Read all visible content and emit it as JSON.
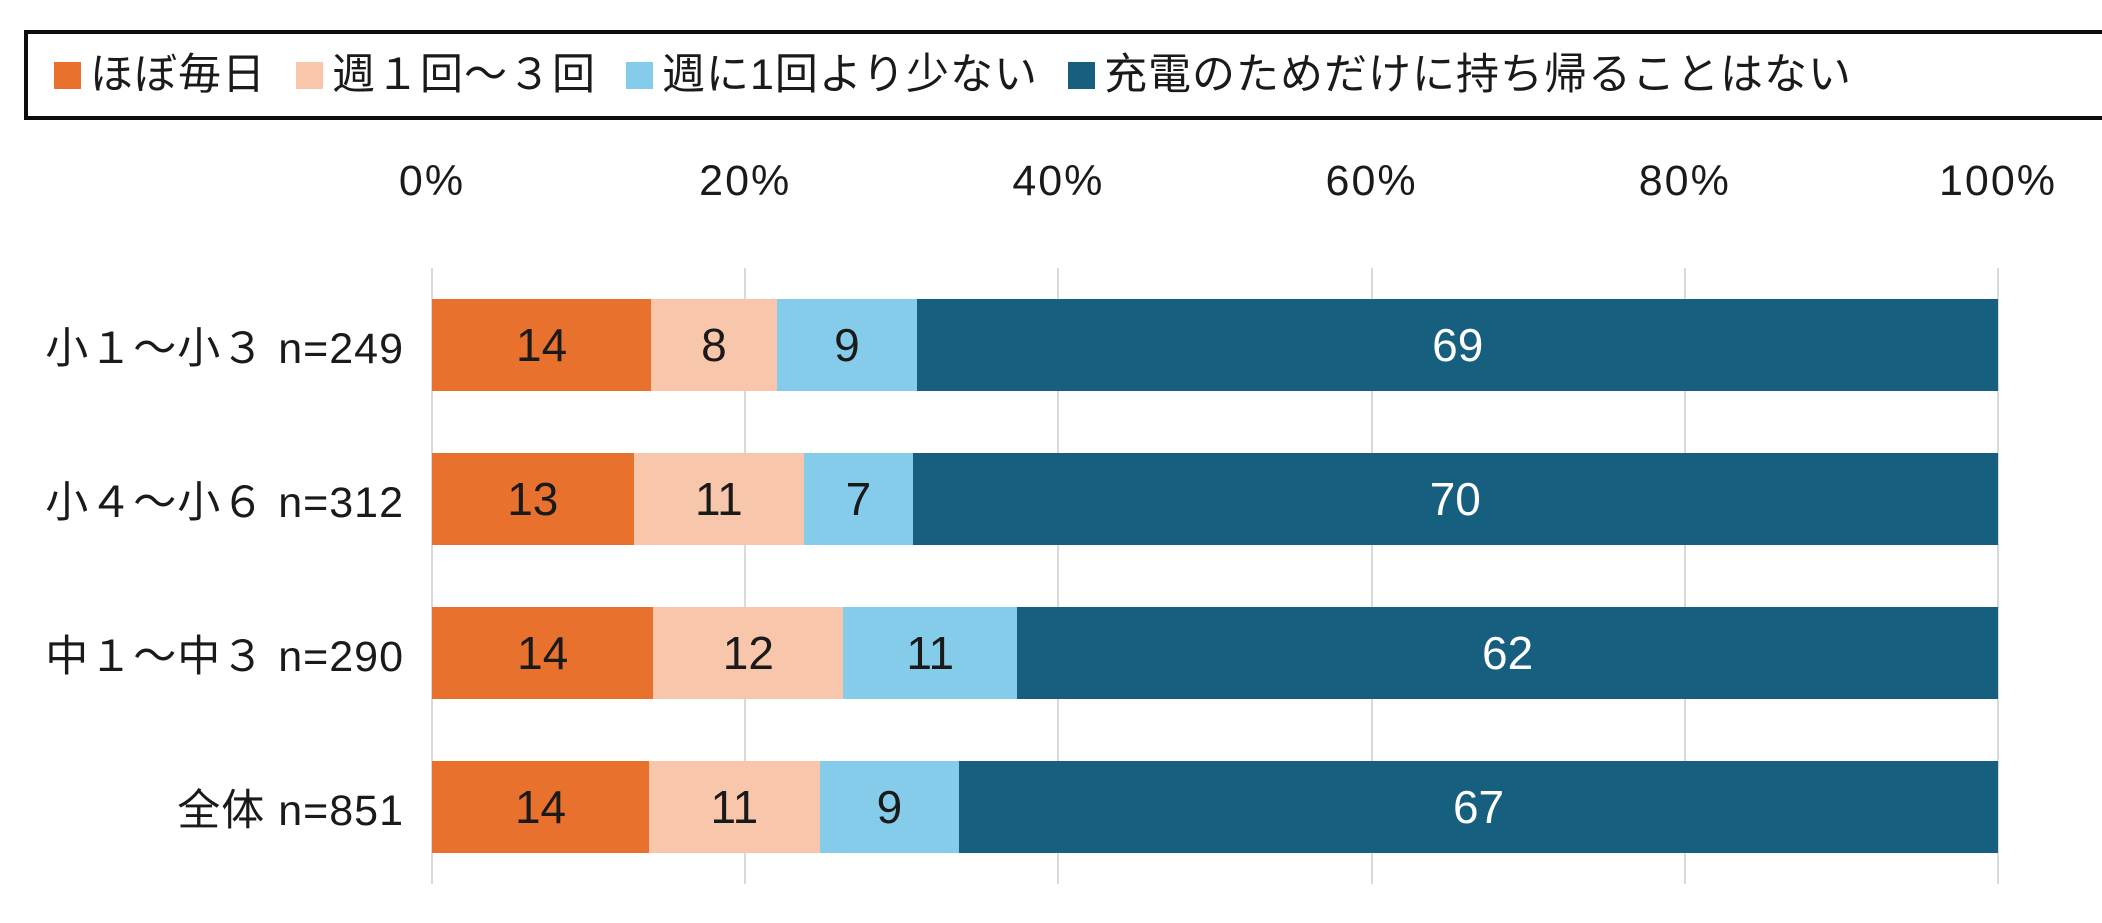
{
  "chart_data": {
    "type": "bar",
    "variant": "stacked-100",
    "orientation": "horizontal",
    "unit": "%",
    "title": "",
    "xlabel": "",
    "ylabel": "",
    "grid": true,
    "legend_position": "top",
    "categories": [
      "小１～小３ n=249",
      "小４～小６ n=312",
      "中１～中３ n=290",
      "全体 n=851"
    ],
    "series": [
      {
        "name": "ほぼ毎日",
        "color": "#e8712e",
        "label_color": "#1a1a1a",
        "values": [
          14,
          13,
          14,
          14
        ]
      },
      {
        "name": "週１回～３回",
        "color": "#f8c7ab",
        "label_color": "#1a1a1a",
        "values": [
          8,
          11,
          12,
          11
        ]
      },
      {
        "name": "週に1回より少ない",
        "color": "#85cbea",
        "label_color": "#1a1a1a",
        "values": [
          9,
          7,
          11,
          9
        ]
      },
      {
        "name": "充電のためだけに持ち帰ることはない",
        "color": "#175f7f",
        "label_color": "#ffffff",
        "values": [
          69,
          70,
          62,
          67
        ]
      }
    ],
    "x_axis": {
      "min": 0,
      "max": 100,
      "tick_step": 20,
      "ticks": [
        "0%",
        "20%",
        "40%",
        "60%",
        "80%",
        "100%"
      ]
    }
  },
  "colors": {
    "background": "#ffffff",
    "gridline": "#d9d9d9",
    "legend_border": "#0d0d0d",
    "text": "#1a1a1a"
  }
}
